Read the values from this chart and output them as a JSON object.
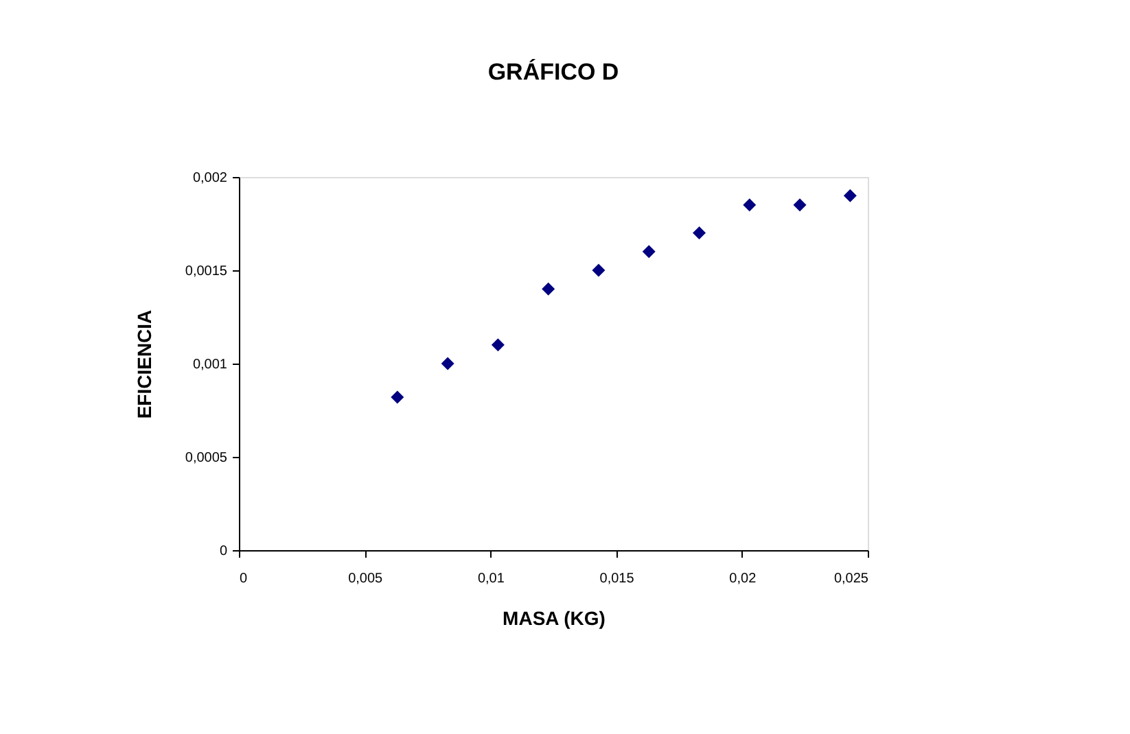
{
  "chart_data": {
    "type": "scatter",
    "title": "GRÁFICO D",
    "xlabel": "MASA (KG)",
    "ylabel": "EFICIENCIA",
    "x": [
      0.0063,
      0.0083,
      0.0103,
      0.0123,
      0.0143,
      0.0163,
      0.0183,
      0.0203,
      0.0223,
      0.0243
    ],
    "series": [
      {
        "color": "#000080",
        "values": [
          0.00082,
          0.001,
          0.0011,
          0.0014,
          0.0015,
          0.0016,
          0.0017,
          0.00185,
          0.00185,
          0.0019
        ]
      }
    ],
    "xlim": [
      0,
      0.025
    ],
    "ylim": [
      0,
      0.002
    ],
    "xticks": [
      0,
      {
        "value": 0.005,
        "label": "0,005"
      },
      {
        "value": 0.01,
        "label": "0,01"
      },
      {
        "value": 0.015,
        "label": "0,015"
      },
      {
        "value": 0.02,
        "label": "0,02"
      },
      {
        "value": 0.025,
        "label": "0,025"
      }
    ],
    "yticks": [
      0,
      {
        "value": 0.0005,
        "label": "0,0005"
      },
      {
        "value": 0.001,
        "label": "0,001"
      },
      {
        "value": 0.0015,
        "label": "0,0015"
      },
      {
        "value": 0.002,
        "label": "0,002"
      }
    ],
    "marker": "diamond",
    "grid": false,
    "legend": false
  }
}
